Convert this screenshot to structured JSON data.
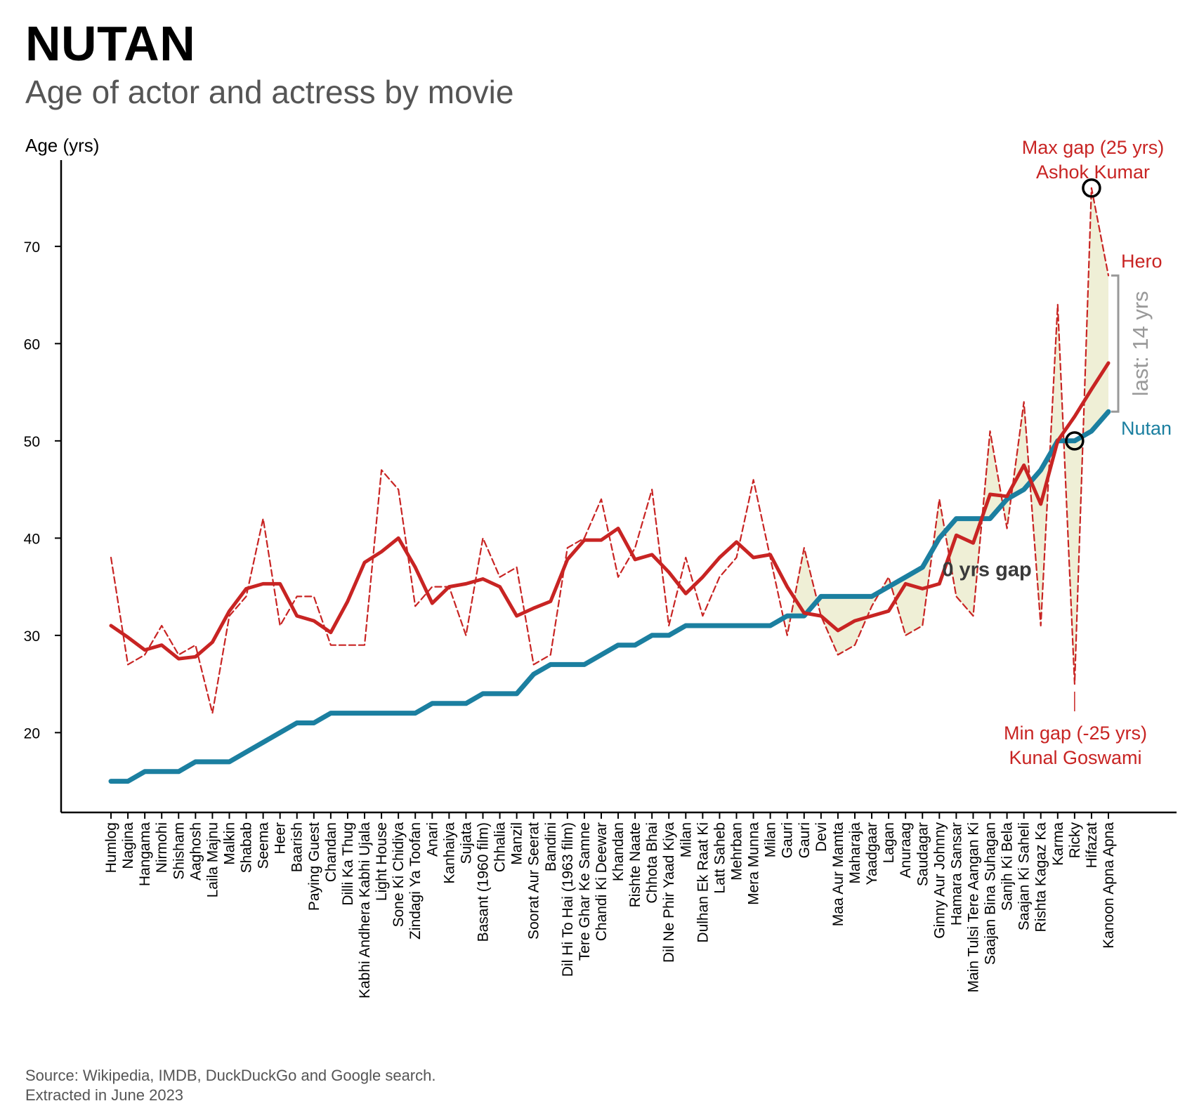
{
  "title": "NUTAN",
  "subtitle": "Age of actor and actress by movie",
  "source": {
    "line1": "Source: Wikipedia, IMDB, DuckDuckGo and Google search.",
    "line2": "Extracted in June 2023"
  },
  "colors": {
    "hero": "#c82423",
    "heroine": "#1b7fa0",
    "gap_fill": "#efefd6",
    "axis": "#000000",
    "bracket": "#999999",
    "zero_gap_text": "#3a3a3a"
  },
  "chart_data": {
    "type": "line",
    "ylabel": "Age (yrs)",
    "ylim": [
      13,
      80
    ],
    "yticks": [
      20,
      30,
      40,
      50,
      60,
      70
    ],
    "categories": [
      "Humlog",
      "Nagina",
      "Hangama",
      "Nirmohi",
      "Shisham",
      "Aaghosh",
      "Laila Majnu",
      "Malkin",
      "Shabab",
      "Seema",
      "Heer",
      "Baarish",
      "Paying Guest",
      "Chandan",
      "Dilli Ka Thug",
      "Kabhi Andhera Kabhi Ujala",
      "Light House",
      "Sone Ki Chidiya",
      "Zindagi Ya Toofan",
      "Anari",
      "Kanhaiya",
      "Sujata",
      "Basant (1960 film)",
      "Chhalia",
      "Manzil",
      "Soorat Aur Seerat",
      "Bandini",
      "Dil Hi To Hai (1963 film)",
      "Tere Ghar Ke Samne",
      "Chandi Ki Deewar",
      "Khandan",
      "Rishte Naate",
      "Chhota Bhai",
      "Dil Ne Phir Yaad Kiya",
      "Milan",
      "Dulhan Ek Raat Ki",
      "Latt Saheb",
      "Mehrban",
      "Mera Munna",
      "Milan",
      "Gauri",
      "Gauri",
      "Devi",
      "Maa Aur Mamta",
      "Maharaja",
      "Yaadgaar",
      "Lagan",
      "Anuraag",
      "Saudagar",
      "Ginny Aur Johnny",
      "Hamara Sansar",
      "Main Tulsi Tere Aangan Ki",
      "Saajan Bina Suhagan",
      "Sanjh Ki Bela",
      "Saajan Ki Saheli",
      "Rishta Kagaz Ka",
      "Karma",
      "Ricky",
      "Hifazat",
      "Kanoon Apna Apna"
    ],
    "series": [
      {
        "name": "Hero",
        "role": "hero_raw",
        "style": "dashed",
        "values": [
          38,
          27,
          28,
          31,
          28,
          29,
          22,
          32,
          34,
          42,
          31,
          34,
          34,
          29,
          29,
          29,
          47,
          45,
          33,
          35,
          35,
          30,
          40,
          36,
          37,
          27,
          28,
          39,
          40,
          44,
          36,
          39,
          45,
          31,
          38,
          32,
          36,
          38,
          46,
          38,
          30,
          39,
          32,
          28,
          29,
          33,
          36,
          30,
          31,
          44,
          34,
          32,
          51,
          41,
          54,
          31,
          64,
          25,
          76,
          67
        ]
      },
      {
        "name": "",
        "role": "hero_smoothed",
        "style": "solid",
        "values": [
          31,
          29.8,
          28.5,
          29,
          27.6,
          27.8,
          29.3,
          32.5,
          34.8,
          35.3,
          35.3,
          32,
          31.5,
          30.3,
          33.5,
          37.5,
          38.6,
          40,
          37,
          33.3,
          35,
          35.3,
          35.8,
          35,
          32,
          32.8,
          33.5,
          37.8,
          39.8,
          39.8,
          41,
          37.8,
          38.3,
          36.5,
          34.3,
          36,
          38,
          39.6,
          38,
          38.3,
          35,
          32.3,
          32,
          30.5,
          31.5,
          32,
          32.5,
          35.3,
          34.8,
          35.3,
          40.3,
          39.5,
          44.5,
          44.3,
          47.5,
          43.5,
          50,
          52.5,
          55.3,
          58
        ]
      },
      {
        "name": "Nutan",
        "role": "heroine",
        "style": "solid",
        "values": [
          15,
          15,
          16,
          16,
          16,
          17,
          17,
          17,
          18,
          19,
          20,
          21,
          21,
          22,
          22,
          22,
          22,
          22,
          22,
          23,
          23,
          23,
          24,
          24,
          24,
          26,
          27,
          27,
          27,
          28,
          29,
          29,
          30,
          30,
          31,
          31,
          31,
          31,
          31,
          31,
          32,
          32,
          34,
          34,
          34,
          34,
          35,
          36,
          37,
          40,
          42,
          42,
          42,
          44,
          45,
          47,
          50,
          50,
          51,
          53
        ]
      }
    ],
    "legend_labels": {
      "hero": "Hero",
      "heroine": "Nutan"
    },
    "annotations": {
      "max_gap_line1": "Max gap (25 yrs)",
      "max_gap_line2": "Ashok Kumar",
      "max_gap_index": 58,
      "max_gap_value": 76,
      "min_gap_line1": "Min gap (-25 yrs)",
      "min_gap_line2": "Kunal Goswami",
      "min_gap_index": 57,
      "min_gap_value": 50,
      "zero_gap": "0 yrs gap",
      "zero_gap_index": 52,
      "zero_gap_value": 36.8,
      "last_gap": "last: 14 yrs",
      "last_gap_top": 67,
      "last_gap_bottom": 53
    }
  }
}
